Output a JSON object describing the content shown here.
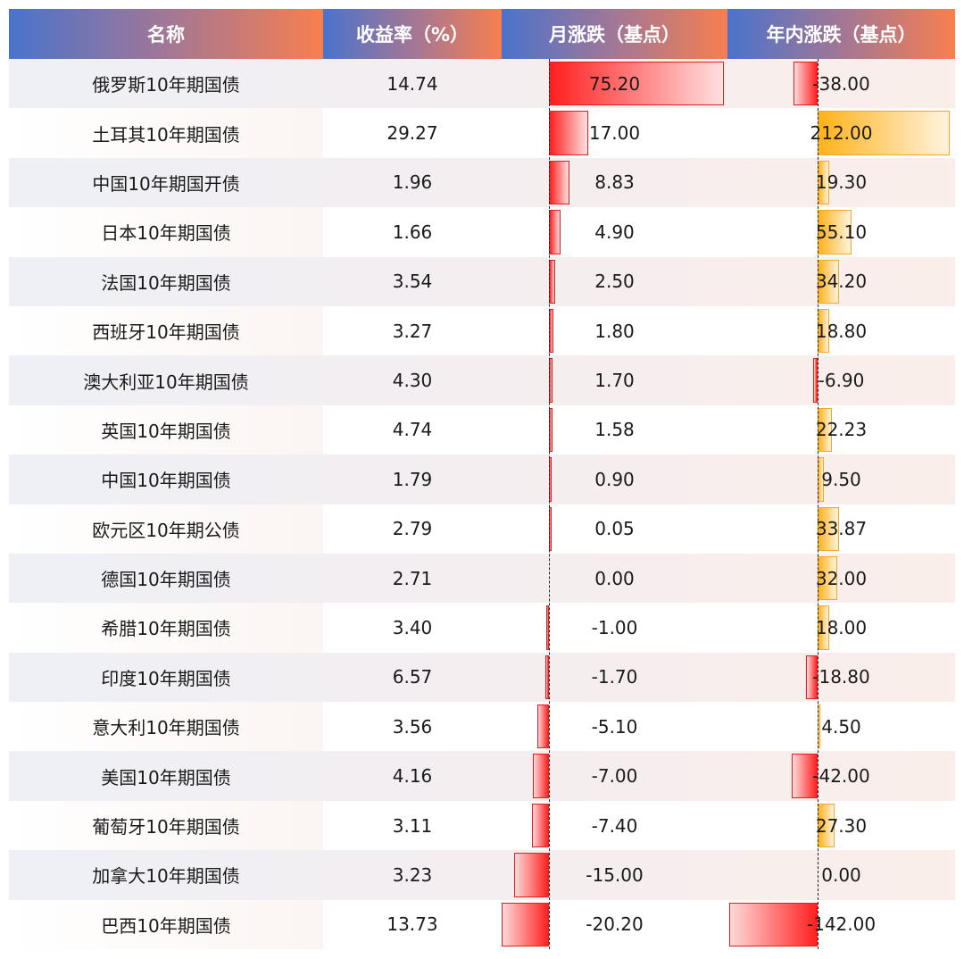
{
  "chart_data": {
    "type": "table",
    "columns": [
      "名称",
      "收益率（%）",
      "月涨跌（基点）",
      "年内涨跌（基点）"
    ],
    "rows": [
      {
        "name": "俄罗斯10年期国债",
        "yield": "14.74",
        "monthly": "75.20",
        "ytd": "-38.00"
      },
      {
        "name": "土耳其10年期国债",
        "yield": "29.27",
        "monthly": "17.00",
        "ytd": "212.00"
      },
      {
        "name": "中国10年期国开债",
        "yield": "1.96",
        "monthly": "8.83",
        "ytd": "19.30"
      },
      {
        "name": "日本10年期国债",
        "yield": "1.66",
        "monthly": "4.90",
        "ytd": "55.10"
      },
      {
        "name": "法国10年期国债",
        "yield": "3.54",
        "monthly": "2.50",
        "ytd": "34.20"
      },
      {
        "name": "西班牙10年期国债",
        "yield": "3.27",
        "monthly": "1.80",
        "ytd": "18.80"
      },
      {
        "name": "澳大利亚10年期国债",
        "yield": "4.30",
        "monthly": "1.70",
        "ytd": "-6.90"
      },
      {
        "name": "英国10年期国债",
        "yield": "4.74",
        "monthly": "1.58",
        "ytd": "22.23"
      },
      {
        "name": "中国10年期国债",
        "yield": "1.79",
        "monthly": "0.90",
        "ytd": "9.50"
      },
      {
        "name": "欧元区10年期公债",
        "yield": "2.79",
        "monthly": "0.05",
        "ytd": "33.87"
      },
      {
        "name": "德国10年期国债",
        "yield": "2.71",
        "monthly": "0.00",
        "ytd": "32.00"
      },
      {
        "name": "希腊10年期国债",
        "yield": "3.40",
        "monthly": "-1.00",
        "ytd": "18.00"
      },
      {
        "name": "印度10年期国债",
        "yield": "6.57",
        "monthly": "-1.70",
        "ytd": "-18.80"
      },
      {
        "name": "意大利10年期国债",
        "yield": "3.56",
        "monthly": "-5.10",
        "ytd": "4.50"
      },
      {
        "name": "美国10年期国债",
        "yield": "4.16",
        "monthly": "-7.00",
        "ytd": "-42.00"
      },
      {
        "name": "葡萄牙10年期国债",
        "yield": "3.11",
        "monthly": "-7.40",
        "ytd": "27.30"
      },
      {
        "name": "加拿大10年期国债",
        "yield": "3.23",
        "monthly": "-15.00",
        "ytd": "0.00"
      },
      {
        "name": "巴西10年期国债",
        "yield": "13.73",
        "monthly": "-20.20",
        "ytd": "-142.00"
      }
    ],
    "colors": {
      "header_start": "#4a73cc",
      "header_end": "#f77f4f",
      "monthly_bar": "#ff2020",
      "ytd_positive_bar": "#ffb21a",
      "ytd_negative_bar": "#ff2020"
    }
  }
}
